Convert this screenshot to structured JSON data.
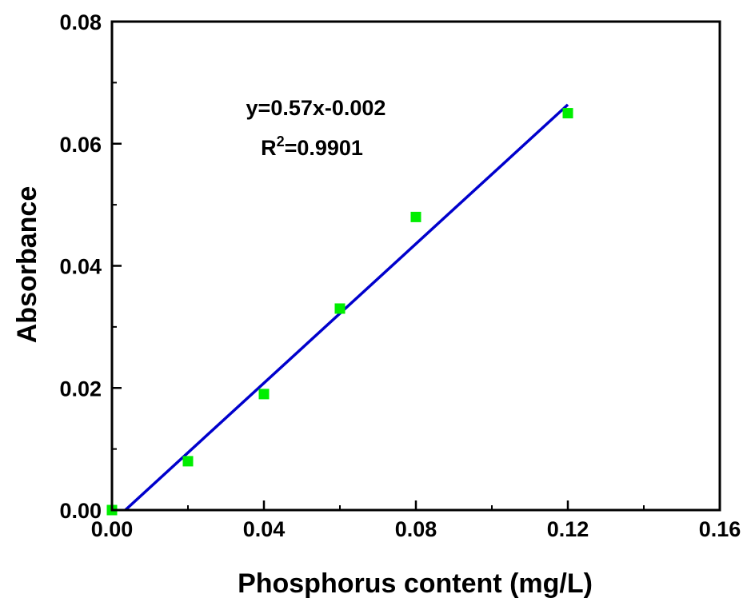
{
  "chart_data": {
    "type": "scatter",
    "xlabel": "Phosphorus content (mg/L)",
    "ylabel": "Absorbance",
    "xlim": [
      0,
      0.16
    ],
    "ylim": [
      0,
      0.08
    ],
    "x_ticks": [
      "0.00",
      "0.04",
      "0.08",
      "0.12",
      "0.16"
    ],
    "y_ticks": [
      "0.00",
      "0.02",
      "0.04",
      "0.06",
      "0.08"
    ],
    "grid": false,
    "series": [
      {
        "type": "scatter",
        "marker": "square",
        "color": "#00ee00",
        "points": [
          {
            "x": 0.0,
            "y": 0.0
          },
          {
            "x": 0.02,
            "y": 0.008
          },
          {
            "x": 0.04,
            "y": 0.019
          },
          {
            "x": 0.06,
            "y": 0.033
          },
          {
            "x": 0.08,
            "y": 0.048
          },
          {
            "x": 0.12,
            "y": 0.065
          }
        ]
      },
      {
        "type": "line",
        "color": "#0000cc",
        "slope": 0.57,
        "intercept": -0.002,
        "x_range": [
          0.0035,
          0.12
        ]
      }
    ],
    "annotations": {
      "equation": "y=0.57x-0.002",
      "r2_base": "R",
      "r2_sup": "2",
      "r2_value": "=0.9901"
    }
  }
}
